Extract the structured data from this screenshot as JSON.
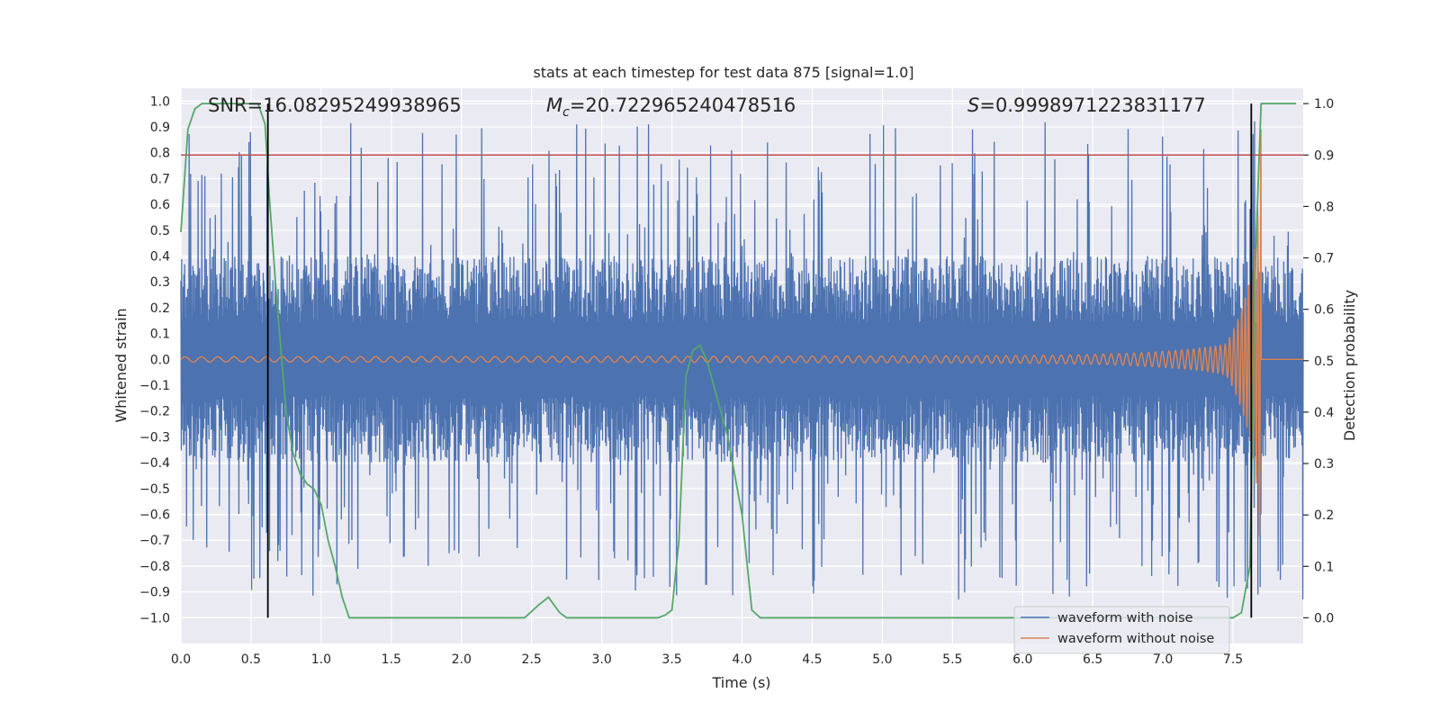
{
  "chart_data": {
    "type": "line",
    "title": "stats at each timestep for test data 875 [signal=1.0]",
    "xlabel": "Time (s)",
    "ylabel": "Whitened strain",
    "y2label": "Detection probability",
    "xlim": [
      0.0,
      8.0
    ],
    "ylim": [
      -1.1,
      1.05
    ],
    "y2lim": [
      -0.05,
      1.03
    ],
    "xticks": [
      0.0,
      0.5,
      1.0,
      1.5,
      2.0,
      2.5,
      3.0,
      3.5,
      4.0,
      4.5,
      5.0,
      5.5,
      6.0,
      6.5,
      7.0,
      7.5
    ],
    "xtick_labels": [
      "0.0",
      "0.5",
      "1.0",
      "1.5",
      "2.0",
      "2.5",
      "3.0",
      "3.5",
      "4.0",
      "4.5",
      "5.0",
      "5.5",
      "6.0",
      "6.5",
      "7.0",
      "7.5"
    ],
    "yticks": [
      1.0,
      0.9,
      0.8,
      0.7,
      0.6,
      0.5,
      0.4,
      0.3,
      0.2,
      0.1,
      0.0,
      -0.1,
      -0.2,
      -0.3,
      -0.4,
      -0.5,
      -0.6,
      -0.7,
      -0.8,
      -0.9,
      -1.0
    ],
    "ytick_labels": [
      "1.0",
      "0.9",
      "0.8",
      "0.7",
      "0.6",
      "0.5",
      "0.4",
      "0.3",
      "0.2",
      "0.1",
      "0.0",
      "−0.1",
      "−0.2",
      "−0.3",
      "−0.4",
      "−0.5",
      "−0.6",
      "−0.7",
      "−0.8",
      "−0.9",
      "−1.0"
    ],
    "y2ticks": [
      1.0,
      0.9,
      0.8,
      0.7,
      0.6,
      0.5,
      0.4,
      0.3,
      0.2,
      0.1,
      0.0
    ],
    "y2tick_labels": [
      "1.0",
      "0.9",
      "0.8",
      "0.7",
      "0.6",
      "0.5",
      "0.4",
      "0.3",
      "0.2",
      "0.1",
      "0.0"
    ],
    "annotations": {
      "snr": "SNR=16.08295249938965",
      "mc_symbol": "M",
      "mc_sub": "c",
      "mc_value": "=20.722965240478516",
      "s_symbol": "S",
      "s_value": "=0.9998971223831177"
    },
    "threshold_y": 0.9,
    "vlines_x": [
      0.62,
      7.63
    ],
    "series": [
      {
        "name": "waveform with noise",
        "color": "#4c72b0",
        "description": "noisy whitened strain, amplitude roughly ±0.4 with spikes to ±0.9",
        "envelope": {
          "x_range": [
            0.0,
            8.0
          ],
          "base_amplitude": 0.4,
          "spike_max": 0.93
        }
      },
      {
        "name": "waveform without noise",
        "color": "#dd8452",
        "description": "chirp signal growing in amplitude and frequency, merging near 7.7 s",
        "chirp": {
          "t_start": 0.0,
          "t_merge": 7.7,
          "start_amplitude": 0.01,
          "peak_amplitude": 0.9,
          "start_freq_hz": 8.5,
          "end_freq_hz": 45
        }
      },
      {
        "name": "detection probability",
        "color": "#55a868",
        "axis": "right",
        "x": [
          0.0,
          0.05,
          0.1,
          0.15,
          0.2,
          0.3,
          0.4,
          0.5,
          0.55,
          0.6,
          0.63,
          0.68,
          0.75,
          0.8,
          0.85,
          0.9,
          0.95,
          1.0,
          1.05,
          1.1,
          1.15,
          1.2,
          1.3,
          1.5,
          2.0,
          2.4,
          2.45,
          2.55,
          2.62,
          2.7,
          2.75,
          2.8,
          3.0,
          3.3,
          3.4,
          3.45,
          3.5,
          3.55,
          3.6,
          3.65,
          3.7,
          3.75,
          3.8,
          3.9,
          4.0,
          4.07,
          4.13,
          4.5,
          5.0,
          6.0,
          7.0,
          7.5,
          7.56,
          7.62,
          7.66,
          7.7,
          7.75,
          7.8,
          7.85,
          7.9,
          7.95
        ],
        "values": [
          0.75,
          0.95,
          0.99,
          1.0,
          1.0,
          1.0,
          1.0,
          1.0,
          1.0,
          0.96,
          0.82,
          0.63,
          0.4,
          0.32,
          0.28,
          0.26,
          0.25,
          0.22,
          0.15,
          0.1,
          0.04,
          0.0,
          0.0,
          0.0,
          0.0,
          0.0,
          0.0,
          0.025,
          0.04,
          0.01,
          0.0,
          0.0,
          0.0,
          0.0,
          0.0,
          0.005,
          0.015,
          0.15,
          0.47,
          0.52,
          0.53,
          0.5,
          0.45,
          0.35,
          0.2,
          0.015,
          0.0,
          0.0,
          0.0,
          0.0,
          0.0,
          0.0,
          0.01,
          0.1,
          0.7,
          1.0,
          1.0,
          1.0,
          1.0,
          1.0,
          1.0
        ]
      }
    ],
    "legend": {
      "position": "lower-right",
      "entries": [
        {
          "label": "waveform with noise",
          "color": "#4c72b0"
        },
        {
          "label": "waveform without noise",
          "color": "#dd8452"
        }
      ]
    },
    "colors": {
      "plot_bg": "#eaeaf2",
      "grid": "#ffffff",
      "threshold": "#c44e52",
      "vline": "#000000"
    }
  }
}
